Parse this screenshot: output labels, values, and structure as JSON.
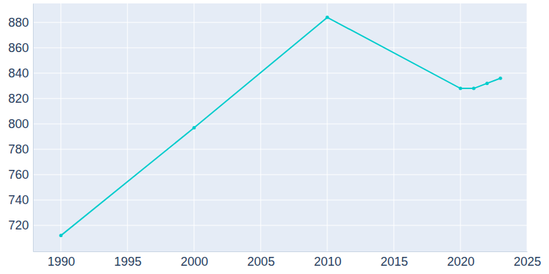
{
  "chart_data": {
    "type": "line",
    "x": [
      1990,
      2000,
      2010,
      2020,
      2021,
      2022,
      2023
    ],
    "values": [
      712,
      797,
      884,
      828,
      828,
      832,
      836
    ],
    "color": "#00cccc",
    "marker": "circle",
    "grid": true,
    "xlim": [
      1987.9,
      2025
    ],
    "xticks": [
      1990,
      1995,
      2000,
      2005,
      2010,
      2015,
      2020,
      2025
    ],
    "ylim": [
      699.5,
      895
    ],
    "yticks": [
      720,
      740,
      760,
      780,
      800,
      820,
      840,
      860,
      880
    ]
  }
}
